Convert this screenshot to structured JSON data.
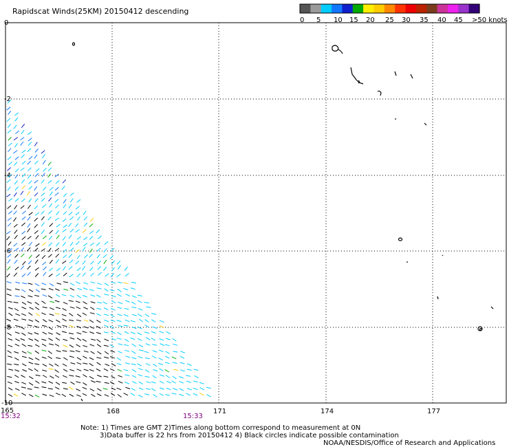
{
  "title": "Rapidscat Winds(25KM) 20150412 descending",
  "legend": {
    "colors": [
      "#555555",
      "#9a9a9a",
      "#00ccff",
      "#1177ff",
      "#1020cc",
      "#00aa00",
      "#ffee00",
      "#ffcc00",
      "#ff8800",
      "#ff3300",
      "#ee0000",
      "#bb2200",
      "#7a3c1c",
      "#cc3399",
      "#ee22ee",
      "#9933cc",
      "#330077"
    ],
    "labels": [
      "0",
      "5",
      "10",
      "15",
      "20",
      "25",
      "30",
      "35",
      "40",
      "45",
      ">50 knots"
    ]
  },
  "axes": {
    "lat_labels": [
      "0",
      "-2",
      "-4",
      "-6",
      "-8",
      "-10"
    ],
    "lon_labels": [
      "165",
      "168",
      "171",
      "174",
      "177"
    ],
    "time_left": "15:32",
    "time_right": "15:33"
  },
  "notes": {
    "line1": "Note: 1) Times are GMT 2)Times along bottom correspond to measurement at 0N",
    "line2": "3)Data buffer is 22 hrs from 20150412 4) Black circles indicate possible contamination",
    "credit": "NOAA/NESDIS/Office of Research and Applications"
  }
}
